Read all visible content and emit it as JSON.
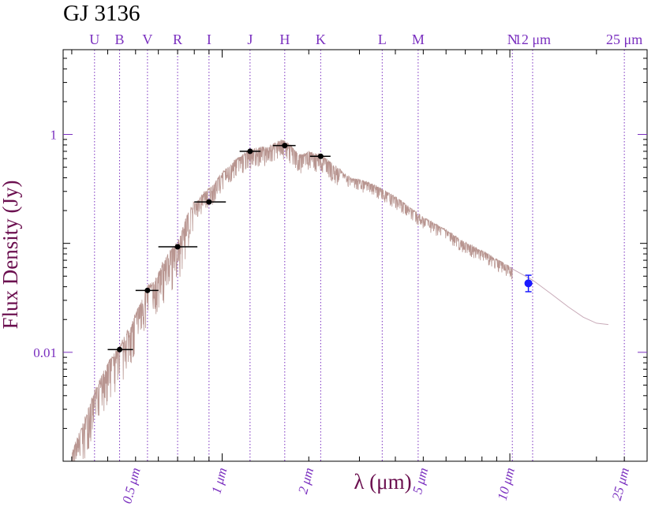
{
  "chart_data": {
    "type": "scatter",
    "title": "GJ 3136",
    "xlabel": "λ (μm)",
    "ylabel": "Flux Density (Jy)",
    "x_scale": "log",
    "y_scale": "log",
    "xlim": [
      0.28,
      30
    ],
    "ylim": [
      0.001,
      6
    ],
    "y_ticks": [
      {
        "value": 1,
        "label": "1"
      },
      {
        "value": 0.01,
        "label": "0.01"
      }
    ],
    "x_ticks": [
      {
        "value": 0.5,
        "label": "0.5 μm"
      },
      {
        "value": 1,
        "label": "1 μm"
      },
      {
        "value": 2,
        "label": "2 μm"
      },
      {
        "value": 5,
        "label": "5 μm"
      },
      {
        "value": 10,
        "label": "10 μm"
      },
      {
        "value": 25,
        "label": "25 μm"
      }
    ],
    "bands": [
      {
        "name": "U",
        "x": 0.36
      },
      {
        "name": "B",
        "x": 0.44
      },
      {
        "name": "V",
        "x": 0.55
      },
      {
        "name": "R",
        "x": 0.7
      },
      {
        "name": "I",
        "x": 0.9
      },
      {
        "name": "J",
        "x": 1.25
      },
      {
        "name": "H",
        "x": 1.65
      },
      {
        "name": "K",
        "x": 2.2
      },
      {
        "name": "L",
        "x": 3.6
      },
      {
        "name": "M",
        "x": 4.8
      },
      {
        "name": "N",
        "x": 10.2
      },
      {
        "name": "12 μm",
        "x": 12.0
      },
      {
        "name": "25 μm",
        "x": 25.0
      }
    ],
    "series": [
      {
        "marker": "black-dot",
        "color": "#000000",
        "points": [
          {
            "x": 0.44,
            "y": 0.0106,
            "xerr": [
              0.4,
              0.49
            ]
          },
          {
            "x": 0.55,
            "y": 0.037,
            "xerr": [
              0.5,
              0.6
            ]
          },
          {
            "x": 0.7,
            "y": 0.093,
            "xerr": [
              0.6,
              0.82
            ]
          },
          {
            "x": 0.9,
            "y": 0.24,
            "xerr": [
              0.8,
              1.03
            ]
          },
          {
            "x": 1.25,
            "y": 0.7,
            "xerr": [
              1.15,
              1.36
            ]
          },
          {
            "x": 1.65,
            "y": 0.79,
            "xerr": [
              1.5,
              1.8
            ]
          },
          {
            "x": 2.2,
            "y": 0.63,
            "xerr": [
              2.02,
              2.38
            ]
          }
        ]
      },
      {
        "marker": "blue-dot",
        "color": "#1a1aff",
        "points": [
          {
            "x": 11.6,
            "y": 0.043,
            "yerr": [
              0.036,
              0.051
            ]
          }
        ]
      }
    ],
    "model_spectrum": {
      "color": "#b89590",
      "tail_color": "#c8aab8",
      "points": [
        [
          0.3,
          0.0011
        ],
        [
          0.33,
          0.0021
        ],
        [
          0.36,
          0.004
        ],
        [
          0.4,
          0.0072
        ],
        [
          0.44,
          0.0105
        ],
        [
          0.48,
          0.016
        ],
        [
          0.52,
          0.026
        ],
        [
          0.55,
          0.037
        ],
        [
          0.58,
          0.04
        ],
        [
          0.62,
          0.06
        ],
        [
          0.66,
          0.078
        ],
        [
          0.7,
          0.093
        ],
        [
          0.75,
          0.16
        ],
        [
          0.8,
          0.22
        ],
        [
          0.86,
          0.28
        ],
        [
          0.92,
          0.32
        ],
        [
          1.0,
          0.43
        ],
        [
          1.1,
          0.55
        ],
        [
          1.2,
          0.65
        ],
        [
          1.3,
          0.72
        ],
        [
          1.45,
          0.74
        ],
        [
          1.6,
          0.86
        ],
        [
          1.7,
          0.8
        ],
        [
          1.85,
          0.62
        ],
        [
          2.0,
          0.66
        ],
        [
          2.2,
          0.63
        ],
        [
          2.5,
          0.48
        ],
        [
          2.8,
          0.39
        ],
        [
          3.2,
          0.36
        ],
        [
          3.6,
          0.31
        ],
        [
          4.2,
          0.24
        ],
        [
          5.0,
          0.17
        ],
        [
          6.0,
          0.13
        ],
        [
          7.0,
          0.1
        ],
        [
          8.5,
          0.077
        ],
        [
          10.0,
          0.06
        ],
        [
          12.0,
          0.046
        ],
        [
          14.0,
          0.034
        ],
        [
          16.0,
          0.026
        ],
        [
          18.0,
          0.021
        ],
        [
          20.0,
          0.0185
        ],
        [
          22.0,
          0.018
        ]
      ]
    }
  }
}
